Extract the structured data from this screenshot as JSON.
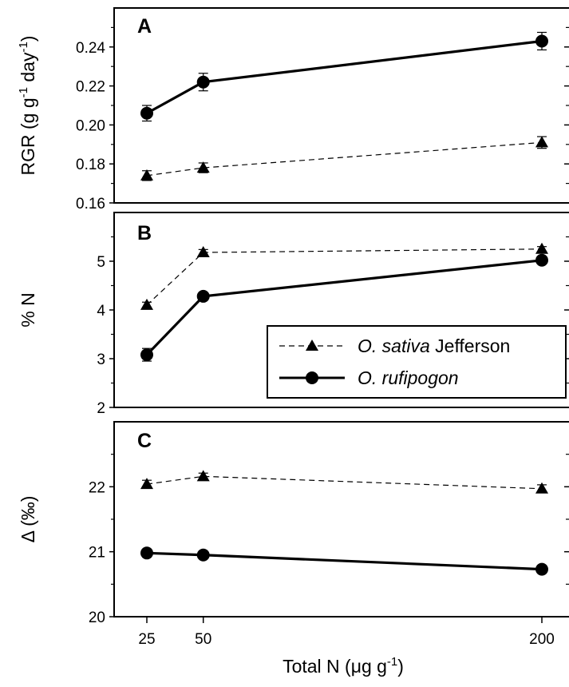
{
  "chart_data": [
    {
      "type": "line",
      "panel_label": "A",
      "ylabel_main": "RGR (g g",
      "ylabel_sup1": "-1",
      "ylabel_mid": " day",
      "ylabel_sup2": "-1",
      "ylabel_end": ")",
      "ylim": [
        0.16,
        0.26
      ],
      "yticks": [
        "0.16",
        "0.18",
        "0.20",
        "0.22",
        "0.24"
      ],
      "x": [
        25,
        50,
        200
      ],
      "series": [
        {
          "name": "O. sativa Jefferson",
          "marker": "triangle",
          "line": "dashed",
          "values": [
            0.174,
            0.178,
            0.191
          ],
          "errors": [
            0.0025,
            0.0025,
            0.003
          ]
        },
        {
          "name": "O. rufipogon",
          "marker": "circle",
          "line": "solid",
          "values": [
            0.206,
            0.222,
            0.243
          ],
          "errors": [
            0.004,
            0.0045,
            0.0045
          ]
        }
      ]
    },
    {
      "type": "line",
      "panel_label": "B",
      "ylabel": "% N",
      "ylim": [
        2,
        6
      ],
      "yticks": [
        "2",
        "3",
        "4",
        "5"
      ],
      "x": [
        25,
        50,
        200
      ],
      "legend_position": "lower-right",
      "series": [
        {
          "name": "O. sativa Jefferson",
          "marker": "triangle",
          "line": "dashed",
          "values": [
            4.1,
            5.18,
            5.25
          ],
          "errors": [
            0.06,
            0.06,
            0.05
          ]
        },
        {
          "name": "O. rufipogon",
          "marker": "circle",
          "line": "solid",
          "values": [
            3.08,
            4.28,
            5.02
          ],
          "errors": [
            0.13,
            0.07,
            0.06
          ]
        }
      ]
    },
    {
      "type": "line",
      "panel_label": "C",
      "ylabel": "Δ (‰)",
      "ylim": [
        20,
        23
      ],
      "yticks": [
        "20",
        "21",
        "22"
      ],
      "x": [
        25,
        50,
        200
      ],
      "series": [
        {
          "name": "O. sativa Jefferson",
          "marker": "triangle",
          "line": "dashed",
          "values": [
            22.04,
            22.16,
            21.97
          ],
          "errors": [
            0.06,
            0.05,
            0.06
          ]
        },
        {
          "name": "O. rufipogon",
          "marker": "circle",
          "line": "solid",
          "values": [
            20.98,
            20.95,
            20.73
          ],
          "errors": [
            0.06,
            0.05,
            0.06
          ]
        }
      ]
    }
  ],
  "xaxis": {
    "ticks": [
      "25",
      "50",
      "200"
    ],
    "label_main": "Total N (μg g",
    "label_sup": "-1",
    "label_end": ")"
  },
  "legend": {
    "item1_italic": "O. sativa",
    "item1_rest": " Jefferson",
    "item2_italic": "O. rufipogon"
  }
}
